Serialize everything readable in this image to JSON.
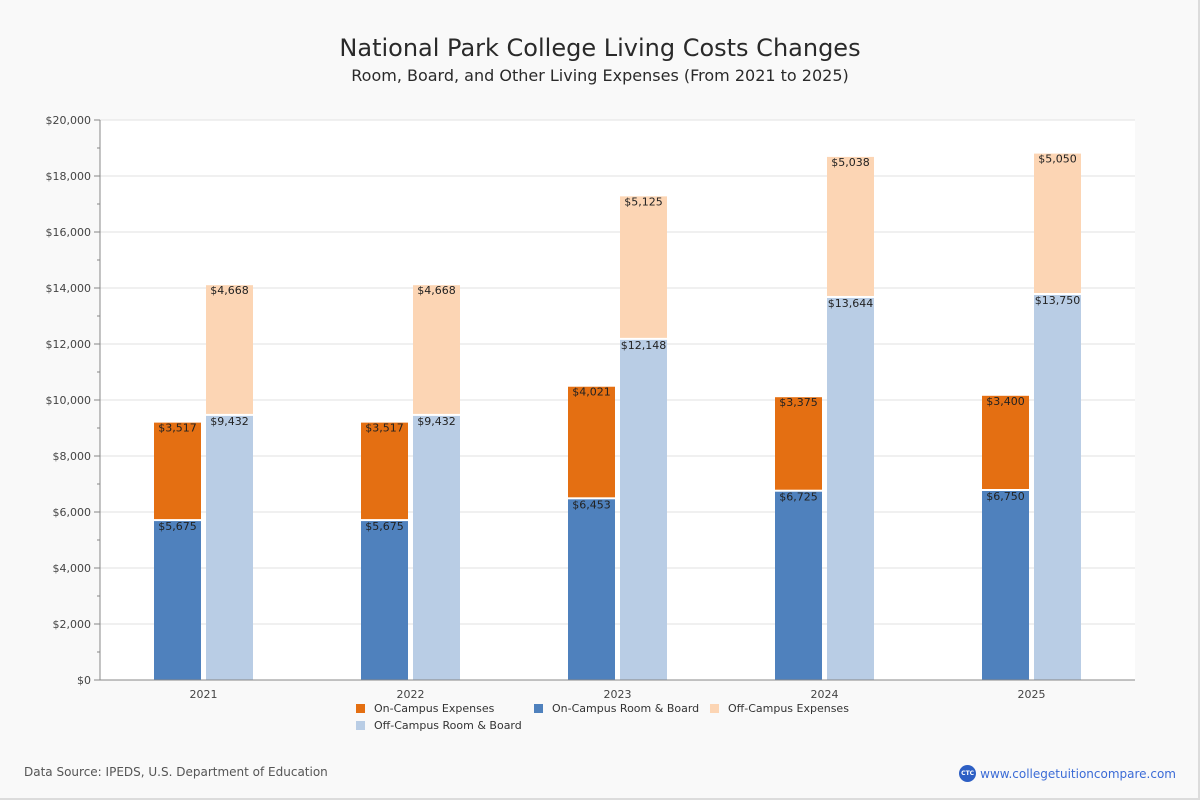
{
  "header": {
    "title": "National Park College Living Costs Changes",
    "subtitle": "Room, Board, and Other Living Expenses (From 2021 to 2025)"
  },
  "footer": {
    "source": "Data Source: IPEDS, U.S. Department of Education",
    "brand_logo_text": "CTC",
    "brand_url_text": "www.collegetuitioncompare.com"
  },
  "chart_data": {
    "type": "bar",
    "stacked": true,
    "title": "National Park College Living Costs Changes",
    "subtitle": "Room, Board, and Other Living Expenses (From 2021 to 2025)",
    "xlabel": "",
    "ylabel": "",
    "categories": [
      "2021",
      "2022",
      "2023",
      "2024",
      "2025"
    ],
    "ylim": [
      0,
      20000
    ],
    "yticks": [
      0,
      2000,
      4000,
      6000,
      8000,
      10000,
      12000,
      14000,
      16000,
      18000,
      20000
    ],
    "ytick_labels": [
      "$0",
      "$2,000",
      "$4,000",
      "$6,000",
      "$8,000",
      "$10,000",
      "$12,000",
      "$14,000",
      "$16,000",
      "$18,000",
      "$20,000"
    ],
    "grid": true,
    "legend_position": "bottom",
    "stacks": [
      {
        "name": "On-Campus",
        "series": [
          "On-Campus Room & Board",
          "On-Campus Expenses"
        ]
      },
      {
        "name": "Off-Campus",
        "series": [
          "Off-Campus Room & Board",
          "Off-Campus Expenses"
        ]
      }
    ],
    "series": [
      {
        "name": "On-Campus Expenses",
        "stack": "On-Campus",
        "color": "#e46f12",
        "values": [
          3517,
          3517,
          4021,
          3375,
          3400
        ],
        "labels": [
          "$3,517",
          "$3,517",
          "$4,021",
          "$3,375",
          "$3,400"
        ]
      },
      {
        "name": "On-Campus Room & Board",
        "stack": "On-Campus",
        "color": "#4f81bd",
        "values": [
          5675,
          5675,
          6453,
          6725,
          6750
        ],
        "labels": [
          "$5,675",
          "$5,675",
          "$6,453",
          "$6,725",
          "$6,750"
        ]
      },
      {
        "name": "Off-Campus Expenses",
        "stack": "Off-Campus",
        "color": "#fcd5b4",
        "values": [
          4668,
          4668,
          5125,
          5038,
          5050
        ],
        "labels": [
          "$4,668",
          "$4,668",
          "$5,125",
          "$5,038",
          "$5,050"
        ]
      },
      {
        "name": "Off-Campus Room & Board",
        "stack": "Off-Campus",
        "color": "#b9cde5",
        "values": [
          9432,
          9432,
          12148,
          13644,
          13750
        ],
        "labels": [
          "$9,432",
          "$9,432",
          "$12,148",
          "$13,644",
          "$13,750"
        ]
      }
    ],
    "legend": [
      {
        "label": "On-Campus Expenses",
        "color": "#e46f12"
      },
      {
        "label": "On-Campus Room & Board",
        "color": "#4f81bd"
      },
      {
        "label": "Off-Campus Expenses",
        "color": "#fcd5b4"
      },
      {
        "label": "Off-Campus Room & Board",
        "color": "#b9cde5"
      }
    ]
  }
}
